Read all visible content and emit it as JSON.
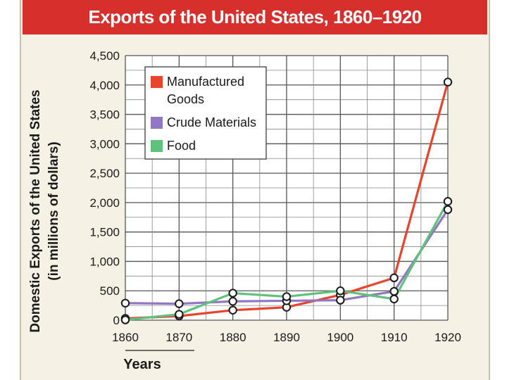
{
  "chart_data": {
    "type": "line",
    "title": "Exports of the United States, 1860–1920",
    "xlabel": "Years",
    "ylabel": "Domestic Exports of the United States",
    "ylabel_sub": "(in millions of dollars)",
    "categories": [
      "1860",
      "1870",
      "1880",
      "1890",
      "1900",
      "1910",
      "1920"
    ],
    "y_ticks": [
      "0",
      "500",
      "1,000",
      "1,500",
      "2,000",
      "2,500",
      "3,000",
      "3,500",
      "4,000",
      "4,500"
    ],
    "ylim": [
      0,
      4500
    ],
    "grid": true,
    "legend_position": "top-left",
    "series": [
      {
        "name": "Manufactured Goods",
        "color": "#e8432b",
        "values": [
          30,
          70,
          170,
          220,
          430,
          720,
          4050
        ]
      },
      {
        "name": "Crude Materials",
        "color": "#9277c2",
        "values": [
          290,
          280,
          320,
          330,
          340,
          490,
          1880
        ]
      },
      {
        "name": "Food",
        "color": "#5ec27d",
        "values": [
          5,
          100,
          460,
          400,
          500,
          360,
          2020
        ]
      }
    ]
  },
  "legend": {
    "items": [
      {
        "line1": "Manufactured",
        "line2": "Goods",
        "color": "#e8432b"
      },
      {
        "line1": "Crude Materials",
        "line2": "",
        "color": "#9277c2"
      },
      {
        "line1": "Food",
        "line2": "",
        "color": "#5ec27d"
      }
    ]
  }
}
